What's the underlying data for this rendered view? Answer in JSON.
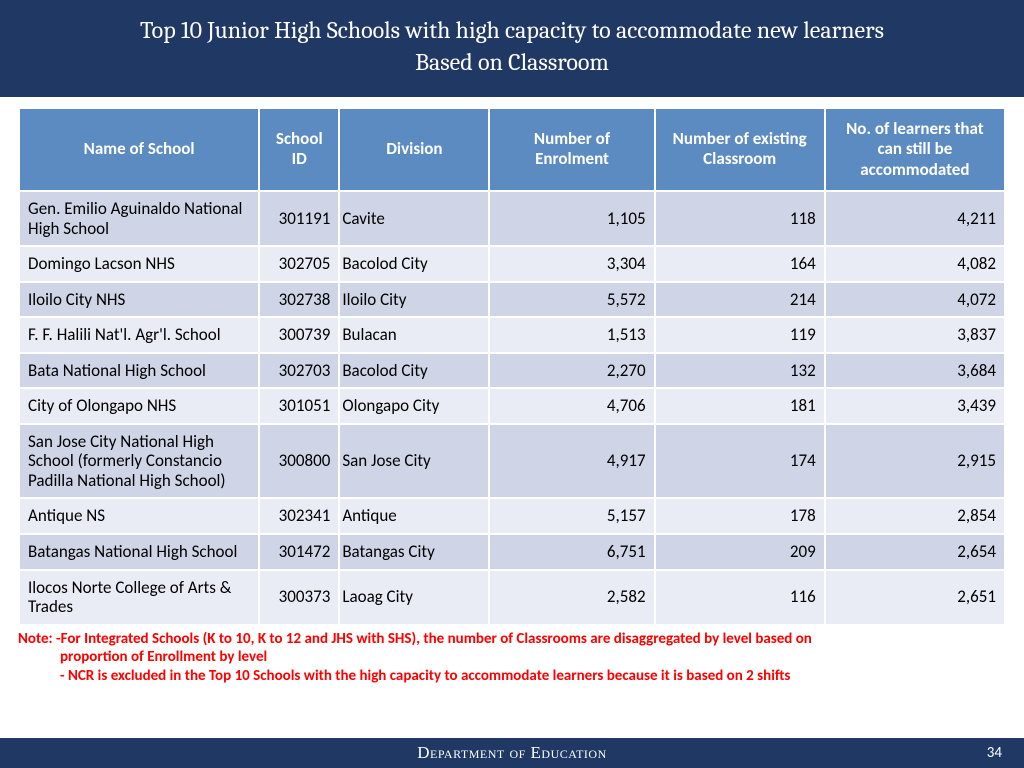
{
  "header": {
    "title_line1": "Top 10 Junior High Schools with high capacity to accommodate new learners",
    "title_line2": "Based on Classroom"
  },
  "table": {
    "columns": [
      "Name of School",
      "School ID",
      "Division",
      "Number of Enrolment",
      "Number of existing Classroom",
      "No. of learners that can still be accommodated"
    ],
    "rows": [
      {
        "name": "Gen. Emilio Aguinaldo National High School",
        "id": "301191",
        "division": "Cavite",
        "enrolment": "1,105",
        "classrooms": "118",
        "capacity": "4,211"
      },
      {
        "name": "Domingo Lacson NHS",
        "id": "302705",
        "division": "Bacolod City",
        "enrolment": "3,304",
        "classrooms": "164",
        "capacity": "4,082"
      },
      {
        "name": "Iloilo City NHS",
        "id": "302738",
        "division": "Iloilo City",
        "enrolment": "5,572",
        "classrooms": "214",
        "capacity": "4,072"
      },
      {
        "name": "F. F. Halili Nat'l. Agr'l. School",
        "id": "300739",
        "division": "Bulacan",
        "enrolment": "1,513",
        "classrooms": "119",
        "capacity": "3,837"
      },
      {
        "name": "Bata National High School",
        "id": "302703",
        "division": "Bacolod City",
        "enrolment": "2,270",
        "classrooms": "132",
        "capacity": "3,684"
      },
      {
        "name": "City of Olongapo NHS",
        "id": "301051",
        "division": "Olongapo City",
        "enrolment": "4,706",
        "classrooms": "181",
        "capacity": "3,439"
      },
      {
        "name": "San Jose City National High School (formerly Constancio Padilla National High School)",
        "id": "300800",
        "division": "San Jose City",
        "enrolment": "4,917",
        "classrooms": "174",
        "capacity": "2,915"
      },
      {
        "name": "Antique NS",
        "id": "302341",
        "division": "Antique",
        "enrolment": "5,157",
        "classrooms": "178",
        "capacity": "2,854"
      },
      {
        "name": "Batangas National High School",
        "id": "301472",
        "division": "Batangas City",
        "enrolment": "6,751",
        "classrooms": "209",
        "capacity": "2,654"
      },
      {
        "name": "Ilocos Norte College of Arts & Trades",
        "id": "300373",
        "division": "Laoag City",
        "enrolment": "2,582",
        "classrooms": "116",
        "capacity": "2,651"
      }
    ]
  },
  "notes": {
    "line1": "Note: -For Integrated Schools (K to 10, K to 12 and JHS with SHS), the number of Classrooms are disaggregated by level based on",
    "line2": "proportion of Enrollment by level",
    "line3": "- NCR is excluded in the Top 10 Schools with the high capacity to accommodate learners because it is based on 2 shifts"
  },
  "footer": {
    "org": "Department of Education",
    "page": "34"
  },
  "colors": {
    "band": "#1f3864",
    "th_bg": "#5b8bc1",
    "row_odd": "#cfd5e6",
    "row_even": "#e9ecf4",
    "note_color": "#ff0000"
  }
}
